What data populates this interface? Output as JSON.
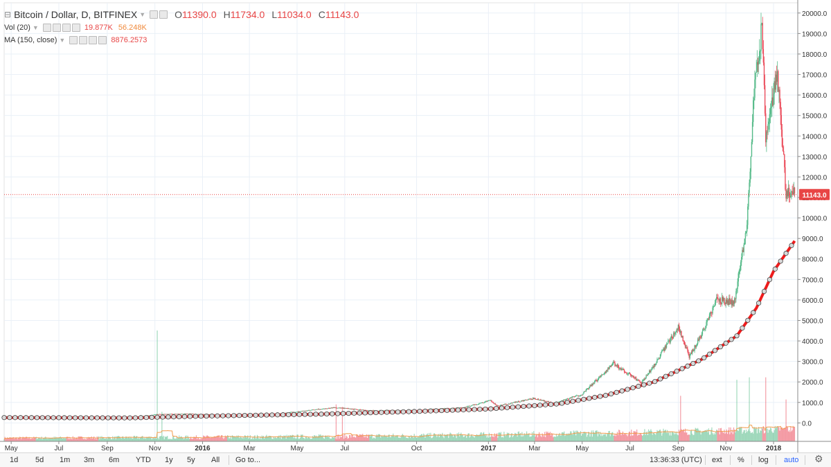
{
  "header": {
    "symbol_title": "Bitcoin / Dollar, D, BITFINEX",
    "open_label": "O",
    "open_value": "11390.0",
    "high_label": "H",
    "high_value": "11734.0",
    "low_label": "L",
    "low_value": "11034.0",
    "close_label": "C",
    "close_value": "11143.0"
  },
  "indicators": {
    "volume": {
      "label": "Vol (20)",
      "value": "19.877K",
      "ma_value": "56.248K"
    },
    "ma": {
      "label": "MA (150, close)",
      "value": "8876.2573"
    }
  },
  "colors": {
    "up": "#53b987",
    "down": "#eb4d5c",
    "ma_line": "#ee1c1c",
    "vol_ma": "#f39c4d",
    "grid": "#eaf0f7",
    "price_label_bg": "#e84545"
  },
  "last_price_label": "11143.0",
  "bottom_toolbar": {
    "ranges": [
      "1d",
      "5d",
      "1m",
      "3m",
      "6m",
      "YTD",
      "1y",
      "5y",
      "All"
    ],
    "goto": "Go to...",
    "time": "13:36:33 (UTC)",
    "ext": "ext",
    "percent": "%",
    "log": "log",
    "auto": "auto",
    "settings_icon": "gear-icon"
  },
  "chart_data": {
    "type": "candlestick",
    "title": "Bitcoin / Dollar, D, BITFINEX",
    "y_ticks": [
      0.0,
      1000.0,
      2000.0,
      3000.0,
      4000.0,
      5000.0,
      6000.0,
      7000.0,
      8000.0,
      9000.0,
      10000.0,
      11000.0,
      12000.0,
      13000.0,
      14000.0,
      15000.0,
      16000.0,
      17000.0,
      18000.0,
      19000.0,
      20000.0
    ],
    "y_tick_labels": [
      "0.0",
      "1000.0",
      "2000.0",
      "3000.0",
      "4000.0",
      "5000.0",
      "6000.0",
      "7000.0",
      "8000.0",
      "9000.0",
      "10000.0",
      "11000.0",
      "12000.0",
      "13000.0",
      "14000.0",
      "15000.0",
      "16000.0",
      "17000.0",
      "18000.0",
      "19000.0",
      "20000.0"
    ],
    "ylim": [
      -900,
      20500
    ],
    "x_range": [
      "2015-04-22",
      "2018-02-01"
    ],
    "x_ticks": [
      {
        "label": "May",
        "date": "2015-05-01",
        "bold": false
      },
      {
        "label": "Jul",
        "date": "2015-07-01",
        "bold": false
      },
      {
        "label": "Sep",
        "date": "2015-09-01",
        "bold": false
      },
      {
        "label": "Nov",
        "date": "2015-11-01",
        "bold": false
      },
      {
        "label": "2016",
        "date": "2016-01-01",
        "bold": true
      },
      {
        "label": "Mar",
        "date": "2016-03-01",
        "bold": false
      },
      {
        "label": "May",
        "date": "2016-05-01",
        "bold": false
      },
      {
        "label": "Jul",
        "date": "2016-07-01",
        "bold": false
      },
      {
        "label": "Oct",
        "date": "2016-10-01",
        "bold": false
      },
      {
        "label": "2017",
        "date": "2017-01-01",
        "bold": true
      },
      {
        "label": "Mar",
        "date": "2017-03-01",
        "bold": false
      },
      {
        "label": "May",
        "date": "2017-05-01",
        "bold": false
      },
      {
        "label": "Jul",
        "date": "2017-07-01",
        "bold": false
      },
      {
        "label": "Sep",
        "date": "2017-09-01",
        "bold": false
      },
      {
        "label": "Nov",
        "date": "2017-11-01",
        "bold": false
      },
      {
        "label": "2018",
        "date": "2018-01-01",
        "bold": true
      }
    ],
    "price_series": {
      "name": "BTCUSD close (approx., daily)",
      "points": [
        {
          "date": "2015-04-22",
          "close": 235
        },
        {
          "date": "2015-06-01",
          "close": 230
        },
        {
          "date": "2015-07-10",
          "close": 270
        },
        {
          "date": "2015-08-20",
          "close": 232
        },
        {
          "date": "2015-10-01",
          "close": 238
        },
        {
          "date": "2015-11-04",
          "close": 420
        },
        {
          "date": "2015-12-15",
          "close": 440
        },
        {
          "date": "2016-02-01",
          "close": 380
        },
        {
          "date": "2016-04-01",
          "close": 420
        },
        {
          "date": "2016-06-18",
          "close": 750
        },
        {
          "date": "2016-08-01",
          "close": 600
        },
        {
          "date": "2016-10-01",
          "close": 615
        },
        {
          "date": "2016-12-01",
          "close": 750
        },
        {
          "date": "2017-01-04",
          "close": 1100
        },
        {
          "date": "2017-01-12",
          "close": 820
        },
        {
          "date": "2017-03-01",
          "close": 1200
        },
        {
          "date": "2017-03-25",
          "close": 950
        },
        {
          "date": "2017-05-01",
          "close": 1400
        },
        {
          "date": "2017-06-10",
          "close": 2900
        },
        {
          "date": "2017-07-16",
          "close": 1950
        },
        {
          "date": "2017-08-01",
          "close": 2800
        },
        {
          "date": "2017-09-01",
          "close": 4700
        },
        {
          "date": "2017-09-15",
          "close": 3200
        },
        {
          "date": "2017-10-01",
          "close": 4350
        },
        {
          "date": "2017-10-20",
          "close": 6000
        },
        {
          "date": "2017-11-12",
          "close": 5900
        },
        {
          "date": "2017-11-28",
          "close": 9800
        },
        {
          "date": "2017-12-07",
          "close": 16000
        },
        {
          "date": "2017-12-17",
          "close": 19300
        },
        {
          "date": "2017-12-22",
          "close": 13800
        },
        {
          "date": "2018-01-06",
          "close": 17100
        },
        {
          "date": "2018-01-17",
          "close": 11200
        },
        {
          "date": "2018-01-28",
          "close": 11143
        }
      ]
    },
    "ma_series": {
      "name": "MA (150, close)",
      "points": [
        {
          "date": "2015-04-22",
          "value": 260
        },
        {
          "date": "2015-10-01",
          "value": 245
        },
        {
          "date": "2016-01-01",
          "value": 330
        },
        {
          "date": "2016-06-01",
          "value": 430
        },
        {
          "date": "2016-10-01",
          "value": 560
        },
        {
          "date": "2017-01-01",
          "value": 680
        },
        {
          "date": "2017-04-01",
          "value": 930
        },
        {
          "date": "2017-06-01",
          "value": 1350
        },
        {
          "date": "2017-08-01",
          "value": 2000
        },
        {
          "date": "2017-10-01",
          "value": 3100
        },
        {
          "date": "2017-11-15",
          "value": 4250
        },
        {
          "date": "2017-12-10",
          "value": 5600
        },
        {
          "date": "2018-01-01",
          "value": 7400
        },
        {
          "date": "2018-01-28",
          "value": 8876.2573
        }
      ]
    },
    "volume_series": {
      "name": "Vol (20)",
      "scale_max": 4500,
      "spikes": [
        {
          "date": "2015-11-04",
          "value": 4500
        },
        {
          "date": "2015-11-10",
          "value": 1200
        },
        {
          "date": "2016-06-20",
          "value": 1500
        },
        {
          "date": "2016-06-28",
          "value": 1400
        },
        {
          "date": "2017-09-04",
          "value": 1850
        },
        {
          "date": "2017-11-15",
          "value": 2500
        },
        {
          "date": "2017-12-01",
          "value": 2600
        },
        {
          "date": "2017-12-22",
          "value": 2600
        },
        {
          "date": "2018-01-17",
          "value": 1700
        }
      ]
    },
    "last_price": 11143.0
  }
}
